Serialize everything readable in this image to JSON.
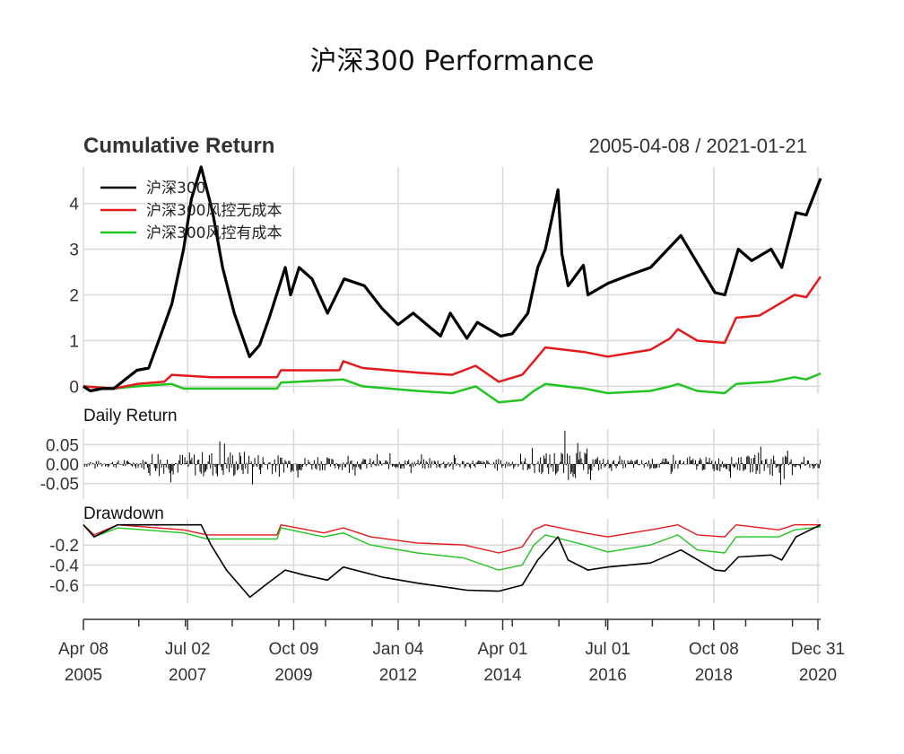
{
  "chart_data": {
    "type": "line",
    "title": "沪深300 Performance",
    "date_range": "2005-04-08 / 2021-01-21",
    "colors": {
      "benchmark": "#000000",
      "no_cost": "#e31a1c",
      "with_cost": "#22c422",
      "grid": "#d9d9d9"
    },
    "x_ticks": [
      {
        "date": "2005-04-08",
        "label_line1": "Apr 08",
        "label_line2": "2005"
      },
      {
        "date": "2007-07-02",
        "label_line1": "Jul 02",
        "label_line2": "2007"
      },
      {
        "date": "2009-10-09",
        "label_line1": "Oct 09",
        "label_line2": "2009"
      },
      {
        "date": "2012-01-04",
        "label_line1": "Jan 04",
        "label_line2": "2012"
      },
      {
        "date": "2014-04-01",
        "label_line1": "Apr 01",
        "label_line2": "2014"
      },
      {
        "date": "2016-07-01",
        "label_line1": "Jul 01",
        "label_line2": "2016"
      },
      {
        "date": "2018-10-08",
        "label_line1": "Oct 08",
        "label_line2": "2018"
      },
      {
        "date": "2020-12-31",
        "label_line1": "Dec 31",
        "label_line2": "2020"
      }
    ],
    "cumulative": {
      "title": "Cumulative Return",
      "ylim": [
        -0.15,
        4.8
      ],
      "yticks": [
        0,
        1,
        2,
        3,
        4
      ],
      "legend": [
        "沪深300",
        "沪深300风控无成本",
        "沪深300风控有成本"
      ],
      "series": [
        {
          "name": "沪深300",
          "points": [
            [
              "2005-04-08",
              0.0
            ],
            [
              "2005-06-01",
              -0.1
            ],
            [
              "2005-09-01",
              -0.05
            ],
            [
              "2005-12-01",
              -0.05
            ],
            [
              "2006-03-01",
              0.15
            ],
            [
              "2006-06-01",
              0.35
            ],
            [
              "2006-09-01",
              0.4
            ],
            [
              "2006-12-01",
              1.1
            ],
            [
              "2007-03-01",
              1.8
            ],
            [
              "2007-06-01",
              3.0
            ],
            [
              "2007-08-01",
              4.1
            ],
            [
              "2007-10-16",
              4.8
            ],
            [
              "2008-01-15",
              3.8
            ],
            [
              "2008-04-01",
              2.6
            ],
            [
              "2008-07-01",
              1.6
            ],
            [
              "2008-10-28",
              0.65
            ],
            [
              "2009-01-15",
              0.9
            ],
            [
              "2009-04-01",
              1.5
            ],
            [
              "2009-08-04",
              2.6
            ],
            [
              "2009-09-15",
              2.0
            ],
            [
              "2009-11-20",
              2.6
            ],
            [
              "2010-03-01",
              2.35
            ],
            [
              "2010-07-01",
              1.6
            ],
            [
              "2010-11-08",
              2.35
            ],
            [
              "2011-04-15",
              2.2
            ],
            [
              "2011-09-01",
              1.7
            ],
            [
              "2012-01-04",
              1.35
            ],
            [
              "2012-05-01",
              1.6
            ],
            [
              "2012-12-01",
              1.1
            ],
            [
              "2013-02-15",
              1.6
            ],
            [
              "2013-06-25",
              1.05
            ],
            [
              "2013-09-15",
              1.4
            ],
            [
              "2014-03-15",
              1.1
            ],
            [
              "2014-06-15",
              1.15
            ],
            [
              "2014-10-15",
              1.6
            ],
            [
              "2014-12-31",
              2.6
            ],
            [
              "2015-03-01",
              3.0
            ],
            [
              "2015-06-08",
              4.3
            ],
            [
              "2015-07-08",
              2.9
            ],
            [
              "2015-08-26",
              2.2
            ],
            [
              "2015-12-23",
              2.65
            ],
            [
              "2016-01-28",
              2.0
            ],
            [
              "2016-07-01",
              2.25
            ],
            [
              "2017-01-01",
              2.45
            ],
            [
              "2017-06-01",
              2.6
            ],
            [
              "2018-01-24",
              3.3
            ],
            [
              "2018-06-01",
              2.7
            ],
            [
              "2018-10-18",
              2.05
            ],
            [
              "2019-01-03",
              2.0
            ],
            [
              "2019-04-19",
              3.0
            ],
            [
              "2019-08-01",
              2.75
            ],
            [
              "2019-12-31",
              3.0
            ],
            [
              "2020-03-23",
              2.6
            ],
            [
              "2020-07-13",
              3.8
            ],
            [
              "2020-10-01",
              3.75
            ],
            [
              "2021-01-21",
              4.55
            ]
          ]
        },
        {
          "name": "沪深300风控无成本",
          "points": [
            [
              "2005-04-08",
              0.0
            ],
            [
              "2005-12-01",
              -0.05
            ],
            [
              "2006-06-01",
              0.05
            ],
            [
              "2007-01-01",
              0.1
            ],
            [
              "2007-03-01",
              0.25
            ],
            [
              "2008-01-01",
              0.2
            ],
            [
              "2009-06-01",
              0.2
            ],
            [
              "2009-07-01",
              0.35
            ],
            [
              "2010-10-01",
              0.35
            ],
            [
              "2010-11-01",
              0.55
            ],
            [
              "2011-04-01",
              0.4
            ],
            [
              "2012-06-01",
              0.3
            ],
            [
              "2013-03-01",
              0.25
            ],
            [
              "2013-09-01",
              0.45
            ],
            [
              "2014-03-01",
              0.1
            ],
            [
              "2014-09-01",
              0.25
            ],
            [
              "2014-12-01",
              0.55
            ],
            [
              "2015-03-01",
              0.85
            ],
            [
              "2016-01-01",
              0.75
            ],
            [
              "2016-07-01",
              0.65
            ],
            [
              "2017-06-01",
              0.8
            ],
            [
              "2017-11-01",
              1.05
            ],
            [
              "2018-01-01",
              1.25
            ],
            [
              "2018-06-01",
              1.0
            ],
            [
              "2019-01-01",
              0.95
            ],
            [
              "2019-04-01",
              1.5
            ],
            [
              "2019-10-01",
              1.55
            ],
            [
              "2020-01-01",
              1.7
            ],
            [
              "2020-07-01",
              2.0
            ],
            [
              "2020-10-01",
              1.95
            ],
            [
              "2021-01-21",
              2.4
            ]
          ]
        },
        {
          "name": "沪深300风控有成本",
          "points": [
            [
              "2005-04-08",
              0.0
            ],
            [
              "2005-12-01",
              -0.05
            ],
            [
              "2006-06-01",
              0.0
            ],
            [
              "2007-03-01",
              0.05
            ],
            [
              "2007-06-01",
              -0.05
            ],
            [
              "2009-06-01",
              -0.05
            ],
            [
              "2009-07-01",
              0.08
            ],
            [
              "2010-11-01",
              0.15
            ],
            [
              "2011-04-01",
              0.0
            ],
            [
              "2012-06-01",
              -0.1
            ],
            [
              "2013-03-01",
              -0.15
            ],
            [
              "2013-09-01",
              0.0
            ],
            [
              "2014-03-01",
              -0.35
            ],
            [
              "2014-09-01",
              -0.3
            ],
            [
              "2014-12-01",
              -0.1
            ],
            [
              "2015-03-01",
              0.05
            ],
            [
              "2016-01-01",
              -0.05
            ],
            [
              "2016-07-01",
              -0.15
            ],
            [
              "2017-06-01",
              -0.1
            ],
            [
              "2017-11-01",
              0.0
            ],
            [
              "2018-01-01",
              0.05
            ],
            [
              "2018-06-01",
              -0.1
            ],
            [
              "2019-01-01",
              -0.15
            ],
            [
              "2019-04-01",
              0.05
            ],
            [
              "2020-01-01",
              0.1
            ],
            [
              "2020-07-01",
              0.2
            ],
            [
              "2020-10-01",
              0.15
            ],
            [
              "2021-01-21",
              0.28
            ]
          ]
        }
      ]
    },
    "daily": {
      "title": "Daily Return",
      "ylim": [
        -0.09,
        0.09
      ],
      "yticks": [
        0.05,
        0.0,
        -0.05
      ],
      "ytick_labels": [
        "0.05",
        "0.00",
        "-0.05"
      ],
      "volatility": [
        [
          "2005-04-08",
          0.015
        ],
        [
          "2006-06-01",
          0.02
        ],
        [
          "2007-02-01",
          0.05
        ],
        [
          "2007-10-01",
          0.06
        ],
        [
          "2008-06-01",
          0.07
        ],
        [
          "2009-03-01",
          0.05
        ],
        [
          "2009-09-01",
          0.04
        ],
        [
          "2010-06-01",
          0.03
        ],
        [
          "2012-01-01",
          0.025
        ],
        [
          "2014-06-01",
          0.02
        ],
        [
          "2015-01-01",
          0.045
        ],
        [
          "2015-08-01",
          0.08
        ],
        [
          "2016-02-01",
          0.05
        ],
        [
          "2016-08-01",
          0.02
        ],
        [
          "2018-03-01",
          0.03
        ],
        [
          "2018-10-01",
          0.035
        ],
        [
          "2019-05-01",
          0.035
        ],
        [
          "2020-02-03",
          0.06
        ],
        [
          "2020-06-01",
          0.03
        ],
        [
          "2021-01-21",
          0.025
        ]
      ]
    },
    "drawdown": {
      "title": "Drawdown",
      "ylim": [
        -0.78,
        0.06
      ],
      "yticks": [
        -0.2,
        -0.4,
        -0.6
      ],
      "ytick_labels": [
        "-0.2",
        "-0.4",
        "-0.6"
      ],
      "series": [
        {
          "name": "沪深300",
          "points": [
            [
              "2005-04-08",
              0.0
            ],
            [
              "2005-07-01",
              -0.12
            ],
            [
              "2006-01-01",
              0.0
            ],
            [
              "2007-10-16",
              0.0
            ],
            [
              "2008-01-01",
              -0.2
            ],
            [
              "2008-05-01",
              -0.45
            ],
            [
              "2008-11-01",
              -0.72
            ],
            [
              "2009-03-01",
              -0.6
            ],
            [
              "2009-08-04",
              -0.45
            ],
            [
              "2010-01-01",
              -0.5
            ],
            [
              "2010-07-01",
              -0.55
            ],
            [
              "2010-11-01",
              -0.42
            ],
            [
              "2011-09-01",
              -0.52
            ],
            [
              "2012-06-01",
              -0.58
            ],
            [
              "2013-06-25",
              -0.65
            ],
            [
              "2014-03-01",
              -0.66
            ],
            [
              "2014-09-01",
              -0.6
            ],
            [
              "2014-12-31",
              -0.35
            ],
            [
              "2015-06-08",
              -0.12
            ],
            [
              "2015-08-26",
              -0.35
            ],
            [
              "2016-01-28",
              -0.45
            ],
            [
              "2016-07-01",
              -0.42
            ],
            [
              "2017-06-01",
              -0.38
            ],
            [
              "2018-01-24",
              -0.25
            ],
            [
              "2018-10-18",
              -0.45
            ],
            [
              "2019-01-03",
              -0.46
            ],
            [
              "2019-04-19",
              -0.32
            ],
            [
              "2019-12-31",
              -0.3
            ],
            [
              "2020-03-23",
              -0.35
            ],
            [
              "2020-07-13",
              -0.12
            ],
            [
              "2021-01-21",
              0.0
            ]
          ]
        },
        {
          "name": "沪深300风控无成本",
          "points": [
            [
              "2005-04-08",
              0.0
            ],
            [
              "2005-07-01",
              -0.1
            ],
            [
              "2006-01-01",
              0.0
            ],
            [
              "2007-06-01",
              -0.05
            ],
            [
              "2007-12-01",
              -0.1
            ],
            [
              "2009-06-01",
              -0.1
            ],
            [
              "2009-07-01",
              0.0
            ],
            [
              "2010-06-01",
              -0.08
            ],
            [
              "2010-11-01",
              -0.03
            ],
            [
              "2011-06-01",
              -0.12
            ],
            [
              "2012-06-01",
              -0.18
            ],
            [
              "2013-06-01",
              -0.2
            ],
            [
              "2014-03-01",
              -0.28
            ],
            [
              "2014-09-01",
              -0.22
            ],
            [
              "2014-12-01",
              -0.05
            ],
            [
              "2015-03-01",
              0.0
            ],
            [
              "2016-01-01",
              -0.08
            ],
            [
              "2016-07-01",
              -0.12
            ],
            [
              "2017-06-01",
              -0.05
            ],
            [
              "2018-01-01",
              0.0
            ],
            [
              "2018-06-01",
              -0.1
            ],
            [
              "2019-01-01",
              -0.12
            ],
            [
              "2019-04-01",
              0.0
            ],
            [
              "2020-03-01",
              -0.05
            ],
            [
              "2020-07-01",
              0.0
            ],
            [
              "2021-01-21",
              0.0
            ]
          ]
        },
        {
          "name": "沪深300风控有成本",
          "points": [
            [
              "2005-04-08",
              0.0
            ],
            [
              "2005-07-01",
              -0.12
            ],
            [
              "2006-01-01",
              -0.03
            ],
            [
              "2007-06-01",
              -0.08
            ],
            [
              "2007-12-01",
              -0.14
            ],
            [
              "2009-06-01",
              -0.14
            ],
            [
              "2009-07-01",
              -0.03
            ],
            [
              "2010-06-01",
              -0.12
            ],
            [
              "2010-11-01",
              -0.08
            ],
            [
              "2011-06-01",
              -0.2
            ],
            [
              "2012-06-01",
              -0.28
            ],
            [
              "2013-06-01",
              -0.33
            ],
            [
              "2014-03-01",
              -0.45
            ],
            [
              "2014-09-01",
              -0.4
            ],
            [
              "2014-12-01",
              -0.2
            ],
            [
              "2015-03-01",
              -0.1
            ],
            [
              "2016-01-01",
              -0.2
            ],
            [
              "2016-07-01",
              -0.27
            ],
            [
              "2017-06-01",
              -0.2
            ],
            [
              "2018-01-01",
              -0.1
            ],
            [
              "2018-06-01",
              -0.25
            ],
            [
              "2019-01-01",
              -0.28
            ],
            [
              "2019-04-01",
              -0.12
            ],
            [
              "2020-03-01",
              -0.12
            ],
            [
              "2020-07-01",
              -0.05
            ],
            [
              "2021-01-21",
              -0.02
            ]
          ]
        }
      ]
    }
  }
}
